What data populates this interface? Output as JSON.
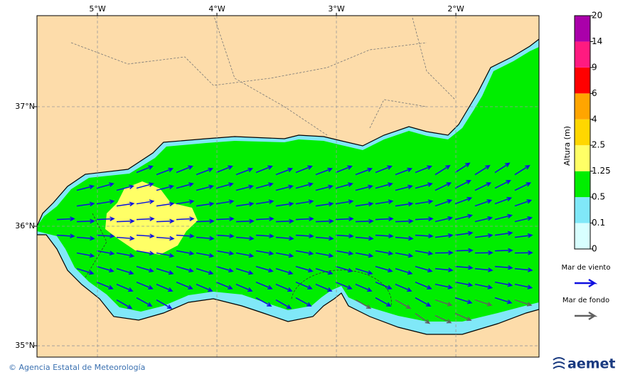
{
  "map": {
    "lon_range": [
      -5.506,
      -1.304
    ],
    "lat_range": [
      34.905,
      37.762
    ],
    "lon_ticks": [
      {
        "value": -5,
        "label": "5°W"
      },
      {
        "value": -4,
        "label": "4°W"
      },
      {
        "value": -3,
        "label": "3°W"
      },
      {
        "value": -2,
        "label": "2°W"
      }
    ],
    "lat_ticks": [
      {
        "value": 37,
        "label": "37°N"
      },
      {
        "value": 36,
        "label": "36°N"
      },
      {
        "value": 35,
        "label": "35°N"
      }
    ]
  },
  "colorbar": {
    "title": "Altura (m)",
    "levels": [
      0,
      0.1,
      0.5,
      1.25,
      2.5,
      4,
      6,
      9,
      14,
      20
    ],
    "colors": [
      "#d8ffff",
      "#80e8f8",
      "#00ee00",
      "#ffff66",
      "#ffd700",
      "#ffa500",
      "#ff0000",
      "#ff1a80",
      "#aa00aa"
    ]
  },
  "legend": [
    {
      "label": "Mar de viento",
      "color": "#1010e0"
    },
    {
      "label": "Mar de fondo",
      "color": "#606060"
    }
  ],
  "footer": {
    "credit": "© Agencia Estatal de Meteorología",
    "logo": "aemet"
  }
}
